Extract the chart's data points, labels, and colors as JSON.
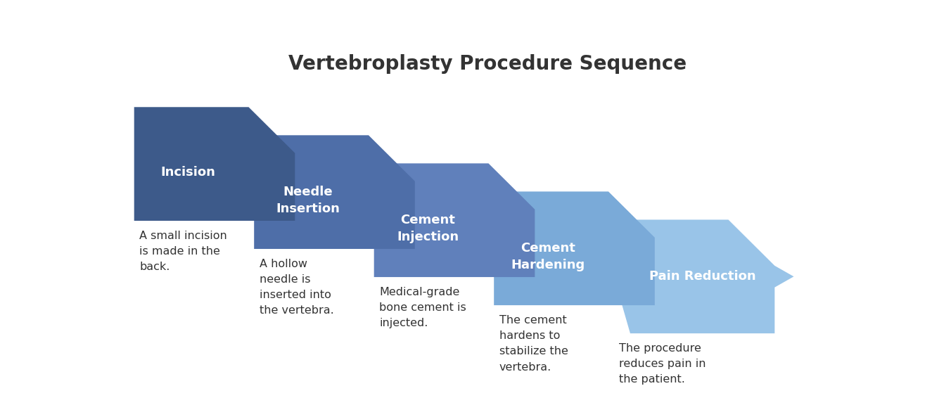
{
  "title": "Vertebroplasty Procedure Sequence",
  "title_fontsize": 20,
  "title_fontweight": "bold",
  "title_color": "#333333",
  "background_color": "#ffffff",
  "steps": [
    {
      "label": "Incision",
      "description": "A small incision\nis made in the\nback.",
      "color": "#3d5a8a"
    },
    {
      "label": "Needle\nInsertion",
      "description": "A hollow\nneedle is\ninserted into\nthe vertebra.",
      "color": "#4e6ea8"
    },
    {
      "label": "Cement\nInjection",
      "description": "Medical-grade\nbone cement is\ninjected.",
      "color": "#6080bb"
    },
    {
      "label": "Cement\nHardening",
      "description": "The cement\nhardens to\nstabilize the\nvertebra.",
      "color": "#7aaad8"
    },
    {
      "label": "Pain Reduction",
      "description": "The procedure\nreduces pain in\nthe patient.",
      "color": "#99c4e8"
    }
  ],
  "label_fontsize": 13,
  "label_fontweight": "bold",
  "label_color": "#ffffff",
  "desc_fontsize": 11.5,
  "desc_color": "#333333",
  "n_steps": 5
}
